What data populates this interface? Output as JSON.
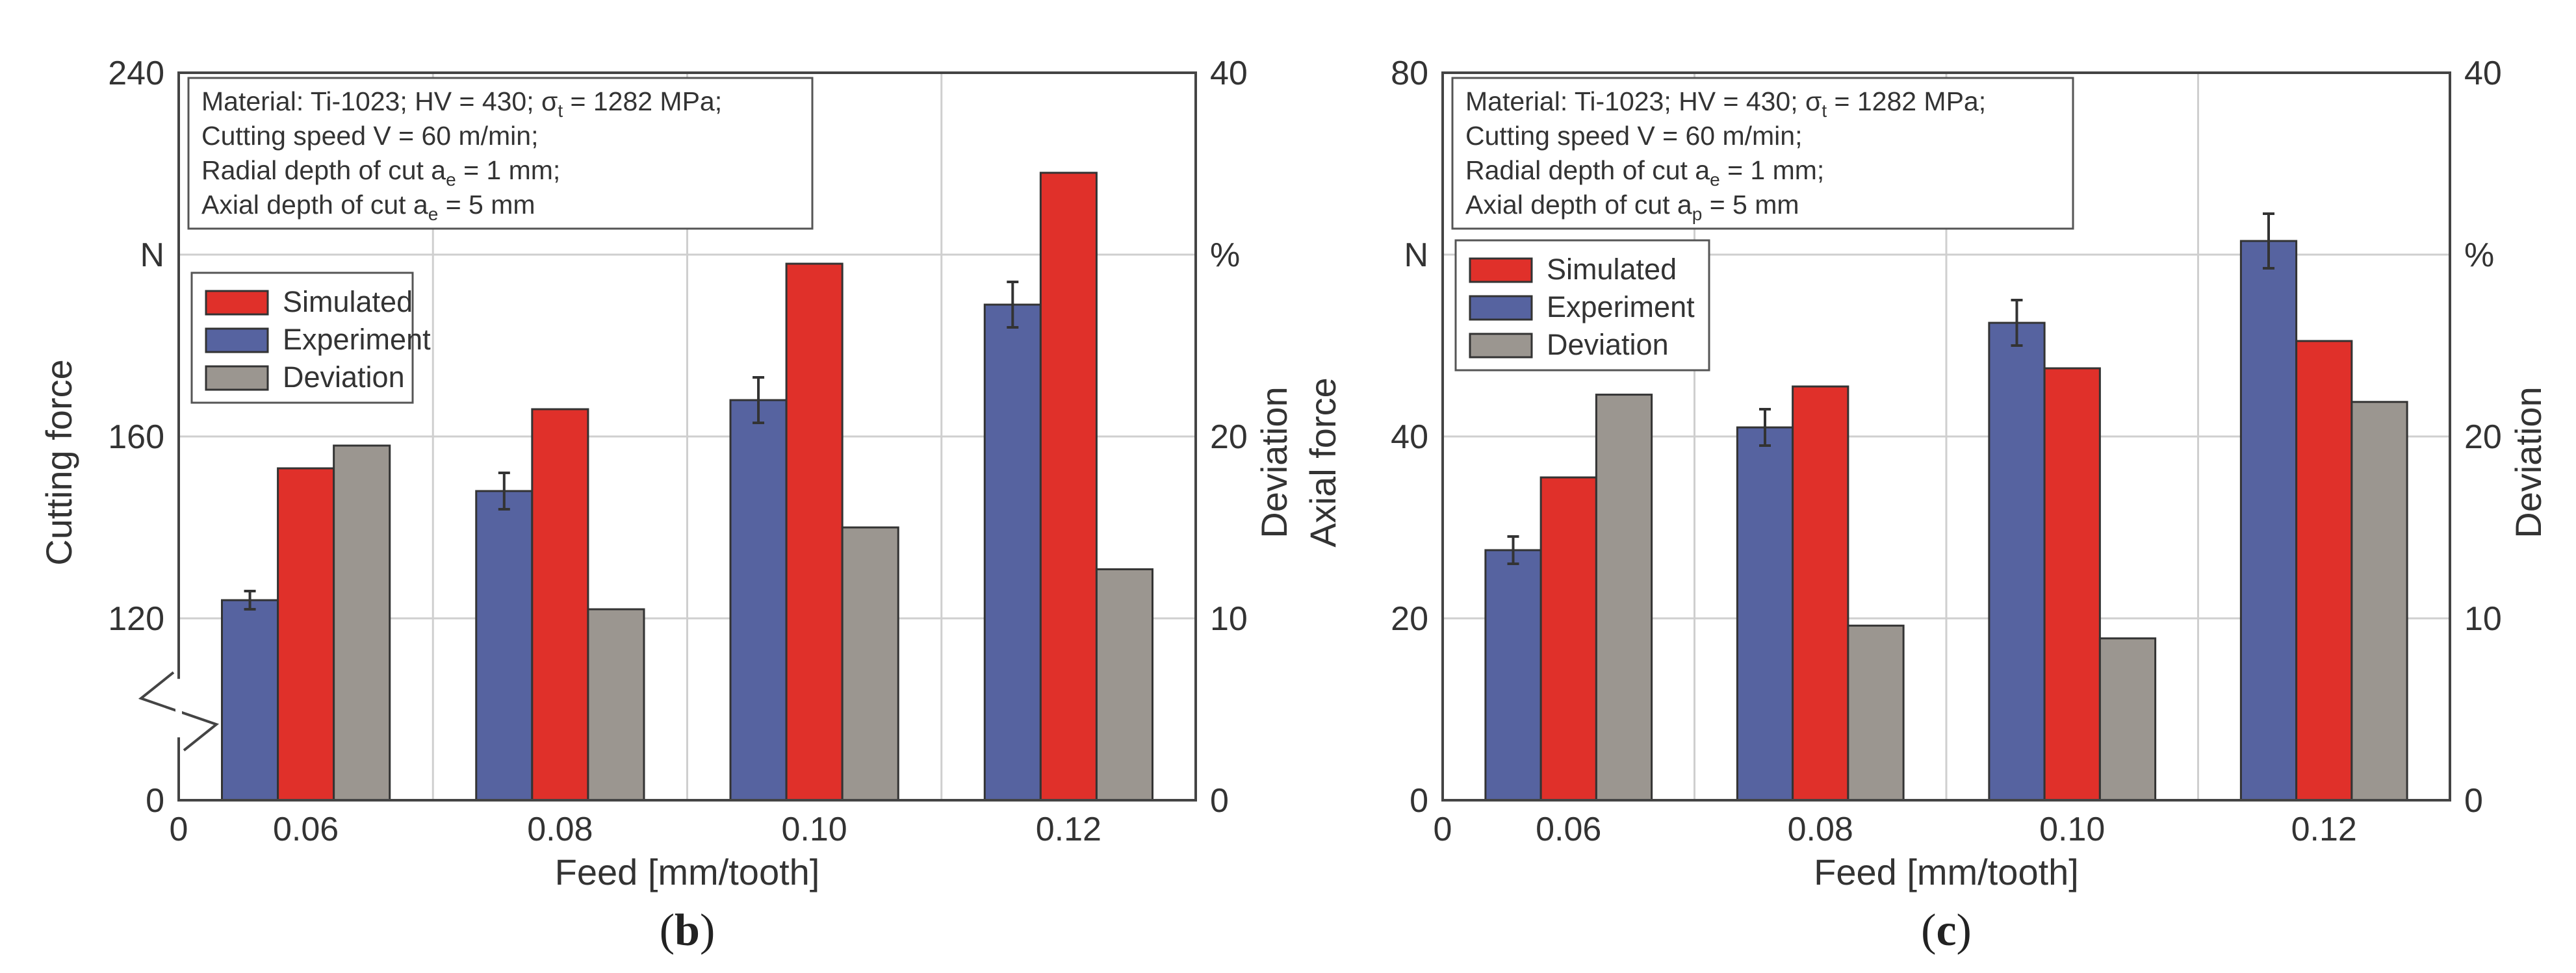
{
  "colors": {
    "simulated": "#e0302a",
    "experiment": "#5663a0",
    "deviation": "#9b9690",
    "grid": "#cfcfcf",
    "axis": "#333333"
  },
  "chart_data": [
    {
      "type": "bar",
      "panel_label": "b",
      "title": "",
      "xlabel": "Feed [mm/tooth]",
      "ylabel": "Cutting force",
      "ylabel_unit": "N",
      "y2label": "Deviation",
      "y2label_unit": "%",
      "x_zero_label": "0",
      "categories": [
        "0.06",
        "0.08",
        "0.10",
        "0.12"
      ],
      "ylim": [
        80,
        240
      ],
      "y_ticks": [
        "0",
        "120",
        "160",
        "240"
      ],
      "y_axis_break": true,
      "y2lim": [
        0,
        40
      ],
      "y2_ticks": [
        "0",
        "10",
        "20",
        "40"
      ],
      "annotation_lines": [
        {
          "pre": "Material: Ti-1023; HV = 430; σ",
          "sub": "t",
          "post": " = 1282 MPa;"
        },
        {
          "pre": "Cutting speed V = 60 m/min;",
          "sub": "",
          "post": ""
        },
        {
          "pre": "Radial depth of cut a",
          "sub": "e",
          "post": " = 1 mm;"
        },
        {
          "pre": "Axial depth of cut a",
          "sub": "e",
          "post": " = 5 mm"
        }
      ],
      "legend": [
        "Simulated",
        "Experiment",
        "Deviation"
      ],
      "series": [
        {
          "name": "Experiment",
          "axis": "left",
          "values": [
            124,
            148,
            168,
            189
          ],
          "errors": [
            2,
            4,
            5,
            5
          ]
        },
        {
          "name": "Simulated",
          "axis": "left",
          "values": [
            153,
            166,
            198,
            218
          ]
        },
        {
          "name": "Deviation",
          "axis": "right",
          "values": [
            19.5,
            10.5,
            15,
            12.7
          ]
        }
      ]
    },
    {
      "type": "bar",
      "panel_label": "c",
      "title": "",
      "xlabel": "Feed [mm/tooth]",
      "ylabel": "Axial force",
      "ylabel_unit": "N",
      "y2label": "Deviation",
      "y2label_unit": "%",
      "x_zero_label": "0",
      "categories": [
        "0.06",
        "0.08",
        "0.10",
        "0.12"
      ],
      "ylim": [
        0,
        80
      ],
      "y_ticks": [
        "0",
        "20",
        "40",
        "80"
      ],
      "y_axis_break": false,
      "y2lim": [
        0,
        40
      ],
      "y2_ticks": [
        "0",
        "10",
        "20",
        "40"
      ],
      "annotation_lines": [
        {
          "pre": "Material: Ti-1023; HV = 430; σ",
          "sub": "t",
          "post": " = 1282 MPa;"
        },
        {
          "pre": "Cutting speed V = 60 m/min;",
          "sub": "",
          "post": ""
        },
        {
          "pre": "Radial depth of cut a",
          "sub": "e",
          "post": " = 1 mm;"
        },
        {
          "pre": "Axial depth of cut a",
          "sub": "p",
          "post": " = 5 mm"
        }
      ],
      "legend": [
        "Simulated",
        "Experiment",
        "Deviation"
      ],
      "series": [
        {
          "name": "Experiment",
          "axis": "left",
          "values": [
            27.5,
            41,
            52.5,
            61.5
          ],
          "errors": [
            1.5,
            2,
            2.5,
            3
          ]
        },
        {
          "name": "Simulated",
          "axis": "left",
          "values": [
            35.5,
            45.5,
            47.5,
            50.5
          ]
        },
        {
          "name": "Deviation",
          "axis": "right",
          "values": [
            22.3,
            9.6,
            8.9,
            21.9
          ]
        }
      ]
    }
  ]
}
